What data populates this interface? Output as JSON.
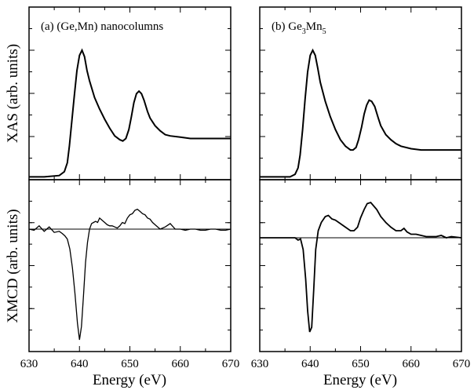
{
  "chart_data": [
    {
      "type": "line",
      "panel": "(a) (Ge,Mn) nanocolumns (top)",
      "panel_label": "(a)",
      "title": "(Ge,Mn) nanocolumns",
      "xlabel": "",
      "ylabel": "XAS (arb. units)",
      "xlim": [
        630,
        670
      ],
      "ylim": [
        0,
        1.1
      ],
      "grid": false,
      "series": [
        {
          "name": "",
          "x": [
            630,
            633,
            636,
            637,
            637.6,
            638.0,
            638.5,
            639.0,
            639.5,
            640.0,
            640.5,
            641.0,
            641.5,
            642,
            643,
            644,
            645,
            646,
            647,
            648,
            648.6,
            649.2,
            649.8,
            650.3,
            650.8,
            651.3,
            651.8,
            652.3,
            652.8,
            653.5,
            654,
            655,
            656,
            657,
            658,
            660,
            662,
            664,
            666,
            668,
            670
          ],
          "y": [
            0.01,
            0.01,
            0.02,
            0.05,
            0.12,
            0.25,
            0.45,
            0.65,
            0.84,
            0.96,
            1.0,
            0.95,
            0.84,
            0.76,
            0.63,
            0.54,
            0.46,
            0.39,
            0.33,
            0.3,
            0.29,
            0.31,
            0.38,
            0.48,
            0.59,
            0.66,
            0.68,
            0.66,
            0.61,
            0.52,
            0.47,
            0.41,
            0.37,
            0.34,
            0.33,
            0.32,
            0.31,
            0.31,
            0.31,
            0.31,
            0.31
          ]
        }
      ]
    },
    {
      "type": "line",
      "panel": "(b) Ge3Mn5 (top)",
      "panel_label": "(b)",
      "title": "Ge3Mn5",
      "xlabel": "",
      "ylabel": "",
      "xlim": [
        630,
        670
      ],
      "ylim": [
        0,
        1.1
      ],
      "grid": false,
      "series": [
        {
          "name": "",
          "x": [
            630,
            633,
            636,
            637,
            637.6,
            638.0,
            638.5,
            639.0,
            639.5,
            640.0,
            640.5,
            641.0,
            641.5,
            642,
            643,
            644,
            645,
            646,
            647,
            648,
            648.5,
            649.1,
            649.6,
            650.2,
            650.7,
            651.2,
            651.7,
            652.2,
            652.8,
            653.5,
            654,
            655,
            656,
            657,
            658,
            660,
            662,
            664,
            666,
            668,
            670
          ],
          "y": [
            0.01,
            0.01,
            0.01,
            0.03,
            0.08,
            0.18,
            0.38,
            0.62,
            0.83,
            0.96,
            1.0,
            0.96,
            0.86,
            0.75,
            0.6,
            0.48,
            0.38,
            0.3,
            0.25,
            0.22,
            0.22,
            0.24,
            0.3,
            0.4,
            0.5,
            0.57,
            0.61,
            0.6,
            0.56,
            0.47,
            0.41,
            0.34,
            0.3,
            0.27,
            0.25,
            0.23,
            0.22,
            0.22,
            0.22,
            0.22,
            0.22
          ]
        }
      ]
    },
    {
      "type": "line",
      "panel": "(a) bottom",
      "xlabel": "Energy (eV)",
      "ylabel": "XMCD (arb. units)",
      "xlim": [
        630,
        670
      ],
      "ylim": [
        -1.05,
        0.3
      ],
      "xticks": [
        630,
        640,
        650,
        660,
        670
      ],
      "grid": false,
      "reference_line": 0,
      "series": [
        {
          "name": "",
          "x": [
            630,
            631,
            632,
            633,
            634,
            635,
            636,
            636.6,
            637.1,
            637.6,
            638.1,
            638.6,
            639.1,
            639.6,
            640.0,
            640.4,
            640.8,
            641.2,
            641.6,
            642.0,
            642.4,
            642.8,
            643.2,
            643.6,
            644.0,
            644.5,
            645,
            645.5,
            646,
            646.5,
            647,
            647.5,
            648,
            648.5,
            649,
            649.5,
            650,
            650.5,
            651,
            651.5,
            652,
            652.5,
            653,
            653.5,
            654,
            654.5,
            655,
            656,
            657,
            658,
            659,
            660,
            661,
            662,
            663,
            664,
            665,
            666,
            667,
            668,
            669,
            670
          ],
          "y": [
            0.0,
            -0.01,
            0.03,
            -0.02,
            0.02,
            -0.03,
            -0.02,
            -0.04,
            -0.06,
            -0.09,
            -0.18,
            -0.35,
            -0.58,
            -0.85,
            -1.0,
            -0.88,
            -0.6,
            -0.3,
            -0.12,
            0.0,
            0.05,
            0.06,
            0.07,
            0.06,
            0.1,
            0.08,
            0.06,
            0.04,
            0.03,
            0.03,
            0.02,
            0.01,
            0.03,
            0.06,
            0.05,
            0.1,
            0.13,
            0.14,
            0.17,
            0.18,
            0.16,
            0.14,
            0.13,
            0.1,
            0.09,
            0.06,
            0.04,
            0.0,
            0.02,
            0.05,
            0.0,
            0.0,
            -0.01,
            0.0,
            0.0,
            -0.01,
            -0.01,
            0.0,
            0.0,
            -0.01,
            -0.01,
            0.0
          ]
        }
      ]
    },
    {
      "type": "line",
      "panel": "(b) bottom",
      "xlabel": "Energy (eV)",
      "ylabel": "",
      "xlim": [
        630,
        670
      ],
      "ylim": [
        -1.05,
        0.3
      ],
      "xticks": [
        630,
        640,
        650,
        660,
        670
      ],
      "grid": false,
      "reference_line": 0,
      "series": [
        {
          "name": "",
          "x": [
            630,
            634,
            636,
            637,
            637.6,
            638.1,
            638.6,
            639.1,
            639.5,
            639.9,
            640.3,
            640.7,
            641.1,
            641.6,
            642.2,
            643,
            643.6,
            644.3,
            645,
            646,
            647,
            648,
            648.7,
            649.4,
            650,
            650.7,
            651.3,
            652,
            652.6,
            653.2,
            654,
            655,
            656,
            657,
            658,
            658.6,
            659.2,
            660,
            661,
            662,
            663,
            664,
            665,
            666,
            667,
            668,
            670
          ],
          "y": [
            0.0,
            0.0,
            0.0,
            0.0,
            -0.02,
            -0.01,
            -0.1,
            -0.35,
            -0.62,
            -0.8,
            -0.76,
            -0.45,
            -0.1,
            0.06,
            0.13,
            0.18,
            0.19,
            0.16,
            0.15,
            0.12,
            0.09,
            0.06,
            0.06,
            0.09,
            0.17,
            0.24,
            0.29,
            0.3,
            0.27,
            0.24,
            0.18,
            0.13,
            0.09,
            0.06,
            0.06,
            0.08,
            0.05,
            0.03,
            0.03,
            0.02,
            0.01,
            0.01,
            0.01,
            0.02,
            0.0,
            0.01,
            0.0
          ]
        }
      ]
    }
  ],
  "labels": {
    "left_title_a": "(a) (Ge,Mn) nanocolumns",
    "right_title_b_prefix": "(b) Ge",
    "right_title_b_sub1": "3",
    "right_title_b_mid": "Mn",
    "right_title_b_sub2": "5",
    "ylabel_top": "XAS (arb. units)",
    "ylabel_bottom": "XMCD (arb. units)",
    "xlabel_left": "Energy (eV)",
    "xlabel_right": "Energy (eV)",
    "xticks": [
      "630",
      "640",
      "650",
      "660",
      "670"
    ]
  }
}
